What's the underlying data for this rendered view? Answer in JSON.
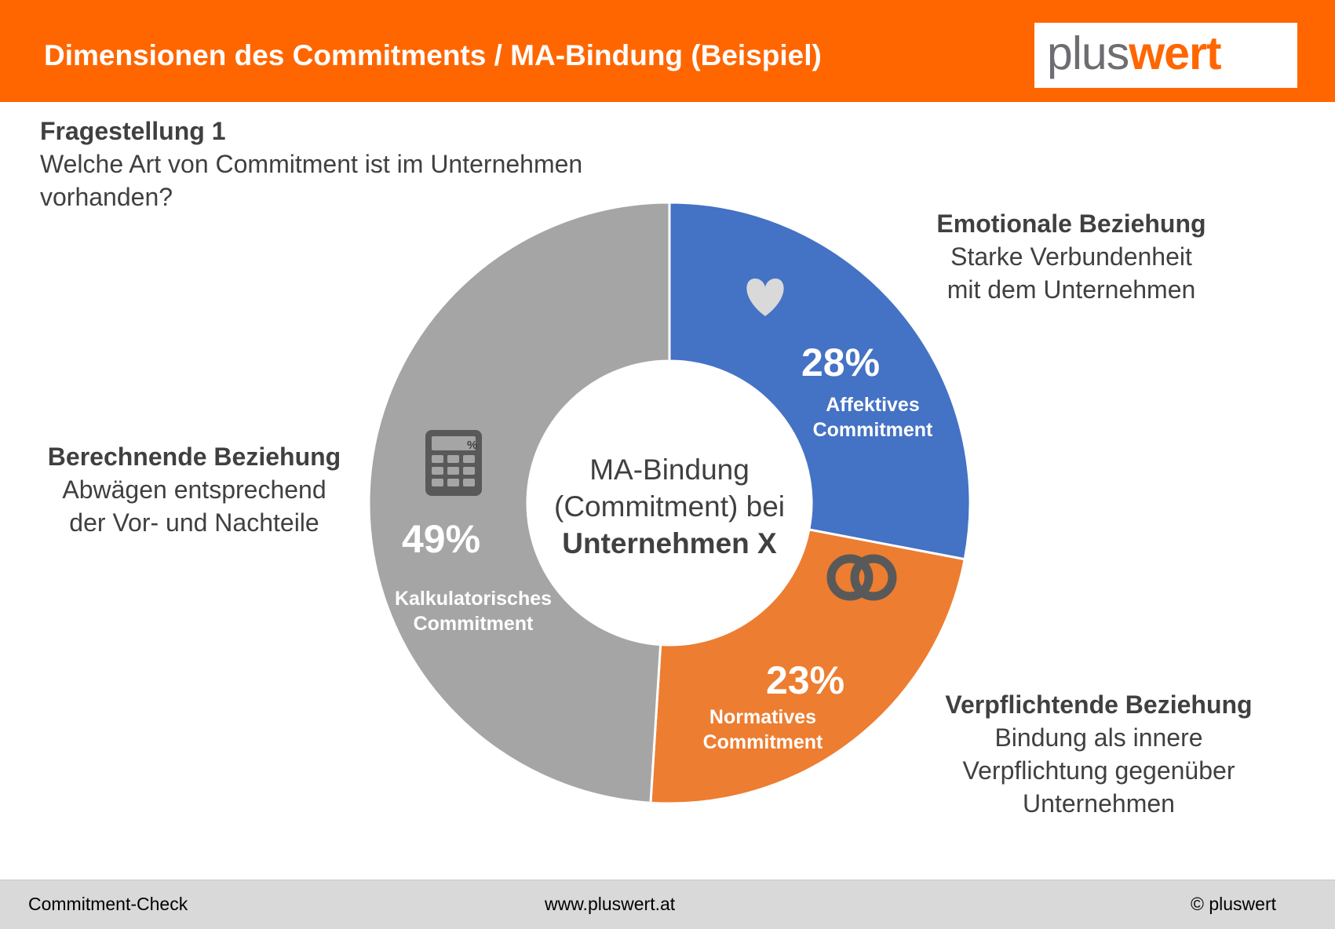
{
  "header": {
    "title": "Dimensionen des Commitments / MA-Bindung (Beispiel)",
    "logo_part1": "plus",
    "logo_part2": "wert",
    "background": "#ff6600"
  },
  "question": {
    "title": "Fragestellung 1",
    "line1": "Welche Art von Commitment ist im Unternehmen",
    "line2": "vorhanden?"
  },
  "labels": {
    "emotional": {
      "heading": "Emotionale Beziehung",
      "line1": "Starke Verbundenheit",
      "line2": "mit dem Unternehmen"
    },
    "calculative": {
      "heading": "Berechnende Beziehung",
      "line1": "Abwägen entsprechend",
      "line2": "der Vor- und Nachteile"
    },
    "normative": {
      "heading": "Verpflichtende Beziehung",
      "line1": "Bindung als innere",
      "line2": "Verpflichtung gegenüber",
      "line3": "Unternehmen"
    }
  },
  "chart_data": {
    "type": "pie",
    "style": "donut",
    "center_text": {
      "line1": "MA-Bindung",
      "line2": "(Commitment) bei",
      "line3": "Unternehmen X"
    },
    "slices": [
      {
        "label_line1": "Affektives",
        "label_line2": "Commitment",
        "value": 28,
        "value_label": "28%",
        "color": "#4472c4",
        "icon": "heart-icon"
      },
      {
        "label_line1": "Normatives",
        "label_line2": "Commitment",
        "value": 23,
        "value_label": "23%",
        "color": "#ed7d31",
        "icon": "linked-rings-icon"
      },
      {
        "label_line1": "Kalkulatorisches",
        "label_line2": "Commitment",
        "value": 49,
        "value_label": "49%",
        "color": "#a5a5a5",
        "icon": "calculator-icon"
      }
    ]
  },
  "footer": {
    "left": "Commitment-Check",
    "center": "www.pluswert.at",
    "right": "© pluswert"
  }
}
